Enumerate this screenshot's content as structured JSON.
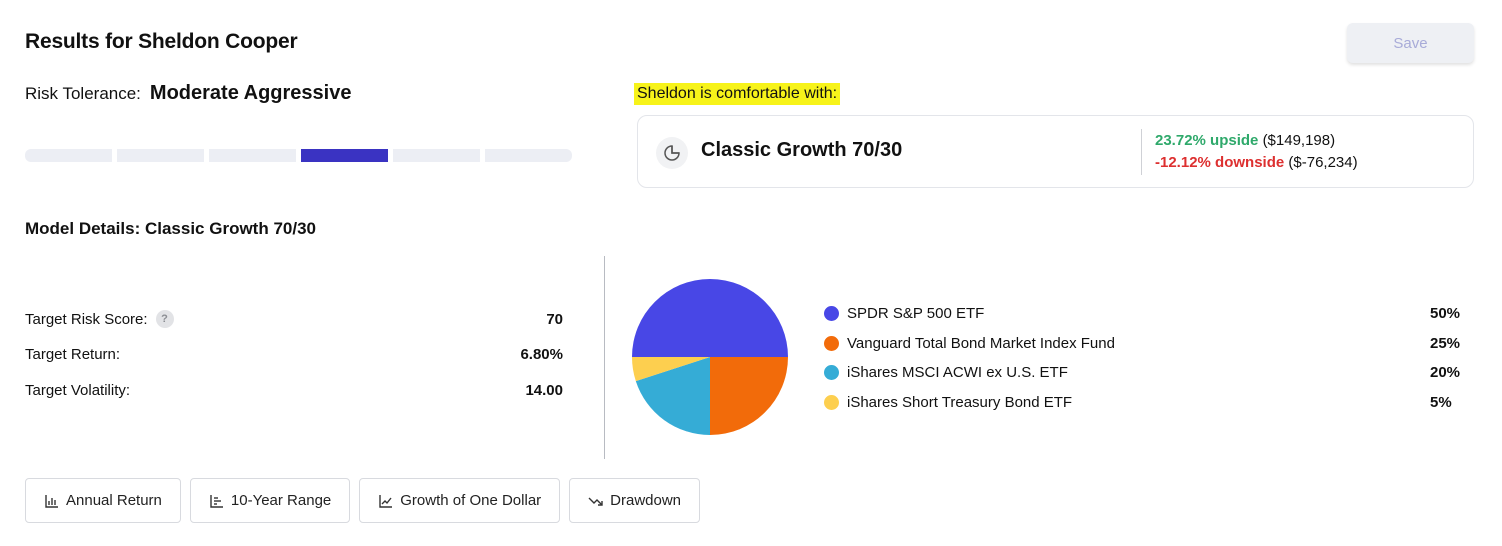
{
  "header": {
    "title": "Results for Sheldon Cooper",
    "save_label": "Save"
  },
  "risk": {
    "label": "Risk Tolerance:",
    "value": "Moderate Aggressive",
    "scale_segments": 6,
    "active_segment": 4,
    "active_color": "#3a33c2"
  },
  "recommendation": {
    "note": "Sheldon is comfortable with:",
    "card_title": "Classic Growth 70/30",
    "card_icon": "pie-chart-icon",
    "upside_text": "23.72% upside",
    "upside_amount": "($149,198)",
    "downside_text": "-12.12% downside",
    "downside_amount": "($-76,234)"
  },
  "model_details": {
    "heading": "Model Details: Classic Growth 70/30",
    "metrics": [
      {
        "label": "Target Risk Score:",
        "value": "70",
        "help_icon": "?"
      },
      {
        "label": "Target Return:",
        "value": "6.80%"
      },
      {
        "label": "Target Volatility:",
        "value": "14.00"
      }
    ]
  },
  "chart_data": {
    "type": "pie",
    "slices": [
      {
        "name": "SPDR S&P 500 ETF",
        "value": 50,
        "label": "50%",
        "color": "#4847e6"
      },
      {
        "name": "Vanguard Total Bond Market Index Fund",
        "value": 25,
        "label": "25%",
        "color": "#f26b0a"
      },
      {
        "name": "iShares MSCI ACWI ex U.S. ETF",
        "value": 20,
        "label": "20%",
        "color": "#35acd6"
      },
      {
        "name": "iShares Short Treasury Bond ETF",
        "value": 5,
        "label": "5%",
        "color": "#fdcf4f"
      }
    ]
  },
  "tabs": [
    {
      "label": "Annual Return",
      "icon": "bar-chart-icon"
    },
    {
      "label": "10-Year Range",
      "icon": "range-chart-icon"
    },
    {
      "label": "Growth of One Dollar",
      "icon": "line-chart-icon"
    },
    {
      "label": "Drawdown",
      "icon": "trend-down-icon"
    }
  ]
}
